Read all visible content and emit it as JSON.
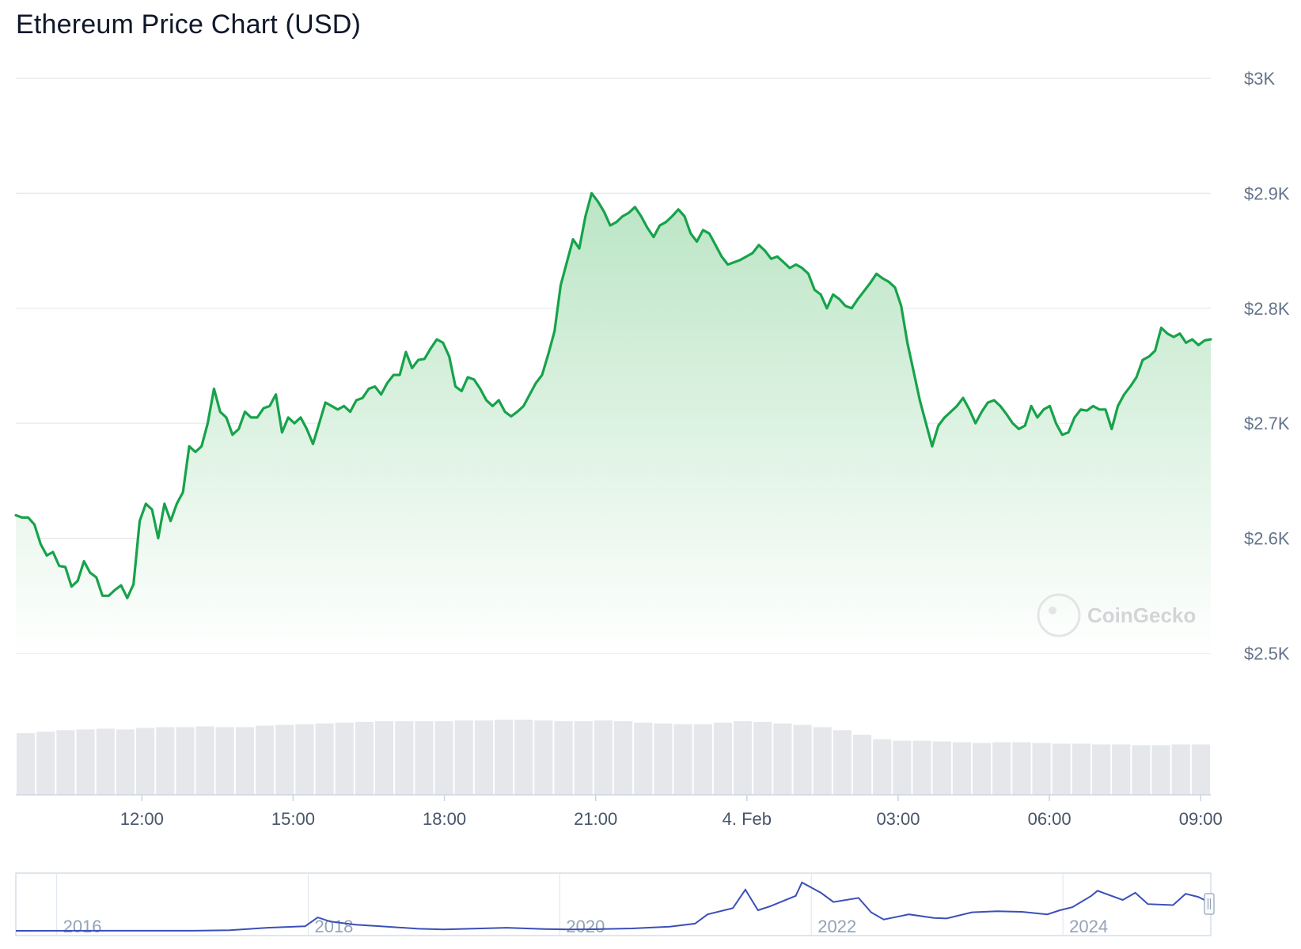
{
  "title": "Ethereum Price Chart (USD)",
  "watermark": "CoinGecko",
  "colors": {
    "price_line": "#16a34a",
    "area_top": "#bbe5c5",
    "volume_bar": "#e5e7eb",
    "navigator_line": "#3b4fb8",
    "grid": "#e5e7eb"
  },
  "chart_data": {
    "type": "area",
    "price": {
      "unit": "USD",
      "x_start_hour": 9.5,
      "x_end_hour": 33.2,
      "ylim": [
        2500,
        3000
      ],
      "yticks": [
        2500,
        2600,
        2700,
        2800,
        2900,
        3000
      ],
      "ytick_labels": [
        "$2.5K",
        "$2.6K",
        "$2.7K",
        "$2.8K",
        "$2.9K",
        "$3K"
      ],
      "xticks": [
        12,
        15,
        18,
        21,
        24,
        27,
        30,
        33
      ],
      "xtick_labels": [
        "12:00",
        "15:00",
        "18:00",
        "21:00",
        "4. Feb",
        "03:00",
        "06:00",
        "09:00"
      ],
      "values": [
        2620,
        2618,
        2618,
        2612,
        2595,
        2585,
        2588,
        2576,
        2575,
        2558,
        2563,
        2580,
        2570,
        2566,
        2550,
        2550,
        2555,
        2559,
        2548,
        2560,
        2615,
        2630,
        2625,
        2600,
        2630,
        2615,
        2630,
        2640,
        2680,
        2675,
        2680,
        2700,
        2730,
        2710,
        2705,
        2690,
        2695,
        2710,
        2705,
        2705,
        2713,
        2715,
        2725,
        2692,
        2705,
        2700,
        2705,
        2695,
        2682,
        2700,
        2718,
        2715,
        2712,
        2715,
        2710,
        2720,
        2722,
        2730,
        2732,
        2725,
        2735,
        2742,
        2742,
        2762,
        2748,
        2755,
        2756,
        2765,
        2773,
        2770,
        2758,
        2732,
        2728,
        2740,
        2738,
        2730,
        2720,
        2715,
        2720,
        2710,
        2706,
        2710,
        2715,
        2725,
        2735,
        2742,
        2760,
        2780,
        2820,
        2840,
        2860,
        2852,
        2880,
        2900,
        2893,
        2884,
        2872,
        2875,
        2880,
        2883,
        2888,
        2880,
        2870,
        2862,
        2872,
        2875,
        2880,
        2886,
        2880,
        2865,
        2858,
        2868,
        2865,
        2855,
        2845,
        2838,
        2840,
        2842,
        2845,
        2848,
        2855,
        2850,
        2843,
        2845,
        2840,
        2835,
        2838,
        2835,
        2830,
        2816,
        2812,
        2800,
        2812,
        2808,
        2802,
        2800,
        2808,
        2815,
        2822,
        2830,
        2826,
        2823,
        2818,
        2802,
        2770,
        2745,
        2720,
        2700,
        2680,
        2698,
        2705,
        2710,
        2715,
        2722,
        2712,
        2700,
        2710,
        2718,
        2720,
        2715,
        2708,
        2700,
        2695,
        2698,
        2715,
        2705,
        2712,
        2715,
        2700,
        2690,
        2692,
        2705,
        2712,
        2711,
        2715,
        2712,
        2712,
        2695,
        2715,
        2725,
        2732,
        2740,
        2755,
        2758,
        2763,
        2783,
        2778,
        2775,
        2778,
        2770,
        2773,
        2768,
        2772,
        2773
      ],
      "volume_relative": [
        0.82,
        0.84,
        0.86,
        0.87,
        0.88,
        0.87,
        0.89,
        0.9,
        0.9,
        0.91,
        0.9,
        0.9,
        0.92,
        0.93,
        0.94,
        0.95,
        0.96,
        0.97,
        0.98,
        0.98,
        0.98,
        0.98,
        0.99,
        0.99,
        1.0,
        1.0,
        0.99,
        0.98,
        0.98,
        0.99,
        0.98,
        0.96,
        0.95,
        0.94,
        0.94,
        0.96,
        0.98,
        0.97,
        0.95,
        0.93,
        0.9,
        0.86,
        0.8,
        0.74,
        0.72,
        0.72,
        0.71,
        0.7,
        0.69,
        0.7,
        0.7,
        0.69,
        0.68,
        0.68,
        0.67,
        0.67,
        0.66,
        0.66,
        0.67,
        0.67
      ]
    },
    "navigator": {
      "xlim_year": [
        2015.6,
        2025.1
      ],
      "xticks": [
        2016,
        2018,
        2020,
        2022,
        2024
      ],
      "xtick_labels": [
        "2016",
        "2018",
        "2020",
        "2022",
        "2024"
      ],
      "series": [
        [
          2015.6,
          1
        ],
        [
          2016.5,
          10
        ],
        [
          2017.0,
          8
        ],
        [
          2017.3,
          50
        ],
        [
          2017.6,
          300
        ],
        [
          2017.9,
          450
        ],
        [
          2018.0,
          1300
        ],
        [
          2018.1,
          900
        ],
        [
          2018.3,
          600
        ],
        [
          2018.5,
          450
        ],
        [
          2018.8,
          200
        ],
        [
          2019.0,
          130
        ],
        [
          2019.5,
          300
        ],
        [
          2019.8,
          180
        ],
        [
          2020.0,
          130
        ],
        [
          2020.2,
          150
        ],
        [
          2020.5,
          230
        ],
        [
          2020.8,
          400
        ],
        [
          2021.0,
          700
        ],
        [
          2021.1,
          1600
        ],
        [
          2021.3,
          2200
        ],
        [
          2021.4,
          4000
        ],
        [
          2021.5,
          2000
        ],
        [
          2021.6,
          2400
        ],
        [
          2021.8,
          3400
        ],
        [
          2021.85,
          4700
        ],
        [
          2022.0,
          3700
        ],
        [
          2022.1,
          2800
        ],
        [
          2022.3,
          3200
        ],
        [
          2022.4,
          1800
        ],
        [
          2022.5,
          1100
        ],
        [
          2022.7,
          1600
        ],
        [
          2022.9,
          1250
        ],
        [
          2023.0,
          1200
        ],
        [
          2023.2,
          1800
        ],
        [
          2023.4,
          1900
        ],
        [
          2023.6,
          1850
        ],
        [
          2023.8,
          1600
        ],
        [
          2023.9,
          2000
        ],
        [
          2024.0,
          2300
        ],
        [
          2024.15,
          3400
        ],
        [
          2024.2,
          3900
        ],
        [
          2024.4,
          3000
        ],
        [
          2024.5,
          3700
        ],
        [
          2024.6,
          2600
        ],
        [
          2024.8,
          2500
        ],
        [
          2024.9,
          3600
        ],
        [
          2025.0,
          3300
        ],
        [
          2025.1,
          2700
        ]
      ]
    }
  }
}
